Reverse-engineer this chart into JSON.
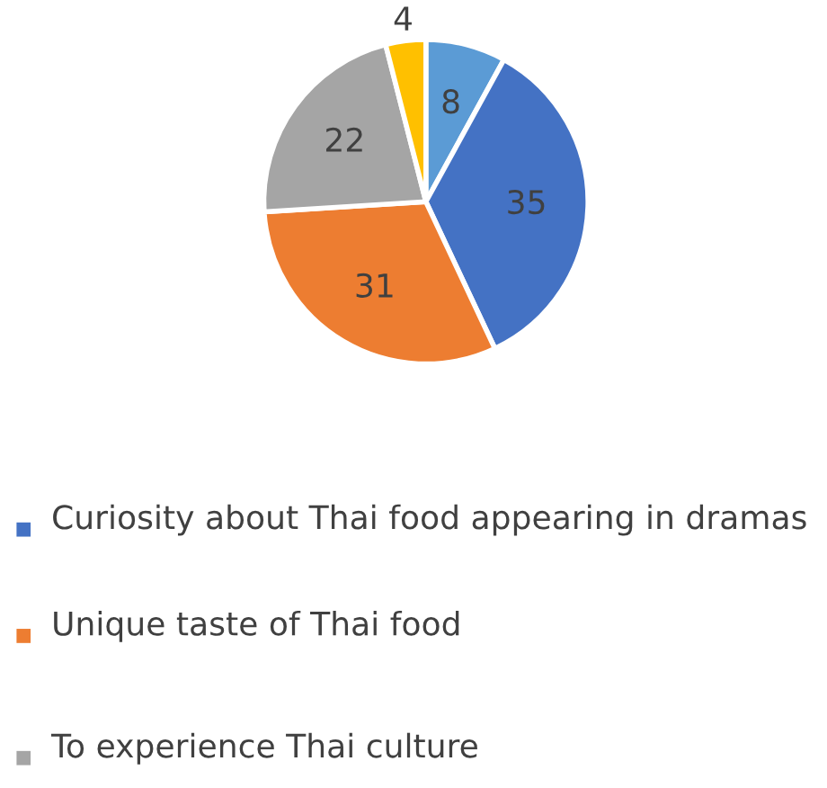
{
  "chart_data": {
    "type": "pie",
    "categories": [
      null,
      "Curiosity about Thai food appearing in dramas",
      "Unique taste of Thai food",
      "To experience Thai culture",
      null
    ],
    "values": [
      8,
      35,
      31,
      22,
      4
    ],
    "colors": [
      "#5b9bd5",
      "#4472c4",
      "#ed7d31",
      "#a5a5a5",
      "#ffc000"
    ],
    "data_labels": true,
    "legend": "bottom"
  }
}
